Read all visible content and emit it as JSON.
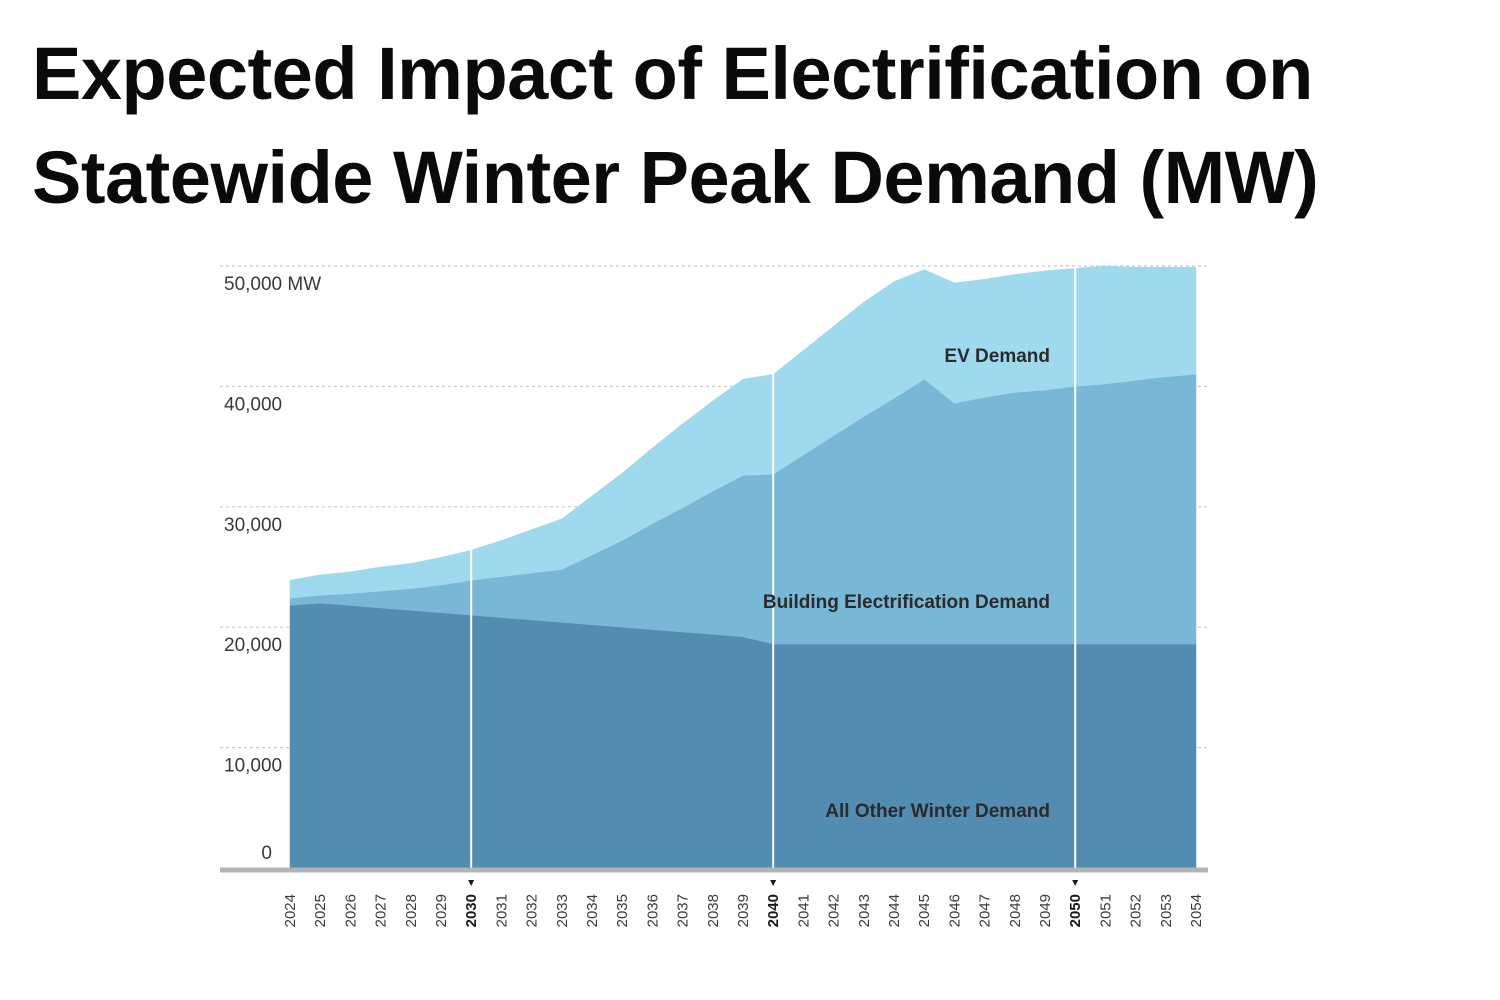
{
  "title_line1": "Expected Impact of Electrification on",
  "title_line2": "Statewide Winter Peak Demand (MW)",
  "chart_data": {
    "type": "area",
    "stacked": true,
    "title": "Expected Impact of Electrification on Statewide Winter Peak Demand (MW)",
    "xlabel": "",
    "ylabel": "",
    "ylim": [
      0,
      50000
    ],
    "grid": true,
    "y_ticks": [
      {
        "value": 0,
        "label": "0"
      },
      {
        "value": 10000,
        "label": "10,000"
      },
      {
        "value": 20000,
        "label": "20,000"
      },
      {
        "value": 30000,
        "label": "30,000"
      },
      {
        "value": 40000,
        "label": "40,000"
      },
      {
        "value": 50000,
        "label": "50,000 MW"
      }
    ],
    "x": [
      2024,
      2025,
      2026,
      2027,
      2028,
      2029,
      2030,
      2031,
      2032,
      2033,
      2034,
      2035,
      2036,
      2037,
      2038,
      2039,
      2040,
      2041,
      2042,
      2043,
      2044,
      2045,
      2046,
      2047,
      2048,
      2049,
      2050,
      2051,
      2052,
      2053,
      2054
    ],
    "x_major": [
      2030,
      2040,
      2050
    ],
    "series": [
      {
        "name": "All Other Winter Demand",
        "color": "#528cb0",
        "values": [
          21800,
          22000,
          21800,
          21600,
          21400,
          21200,
          21000,
          20800,
          20600,
          20400,
          20200,
          20000,
          19800,
          19600,
          19400,
          19200,
          18600,
          18600,
          18600,
          18600,
          18600,
          18600,
          18600,
          18600,
          18600,
          18600,
          18600,
          18600,
          18600,
          18600,
          18600
        ]
      },
      {
        "name": "Building Electrification Demand",
        "color": "#78b7d6",
        "values": [
          600,
          650,
          1000,
          1400,
          1800,
          2300,
          2900,
          3400,
          3900,
          4400,
          5800,
          7200,
          8800,
          10300,
          11900,
          13400,
          14100,
          15700,
          17300,
          18900,
          20400,
          22000,
          20000,
          20500,
          20900,
          21100,
          21400,
          21600,
          21900,
          22200,
          22400
        ]
      },
      {
        "name": "EV Demand",
        "color": "#9fd9ee",
        "values": [
          1500,
          1700,
          1800,
          2000,
          2100,
          2300,
          2500,
          3000,
          3600,
          4200,
          4900,
          5600,
          6300,
          7000,
          7500,
          8000,
          8300,
          8700,
          9100,
          9500,
          9700,
          9100,
          10000,
          9800,
          9800,
          9900,
          9800,
          9800,
          9400,
          9100,
          8900
        ]
      }
    ]
  }
}
